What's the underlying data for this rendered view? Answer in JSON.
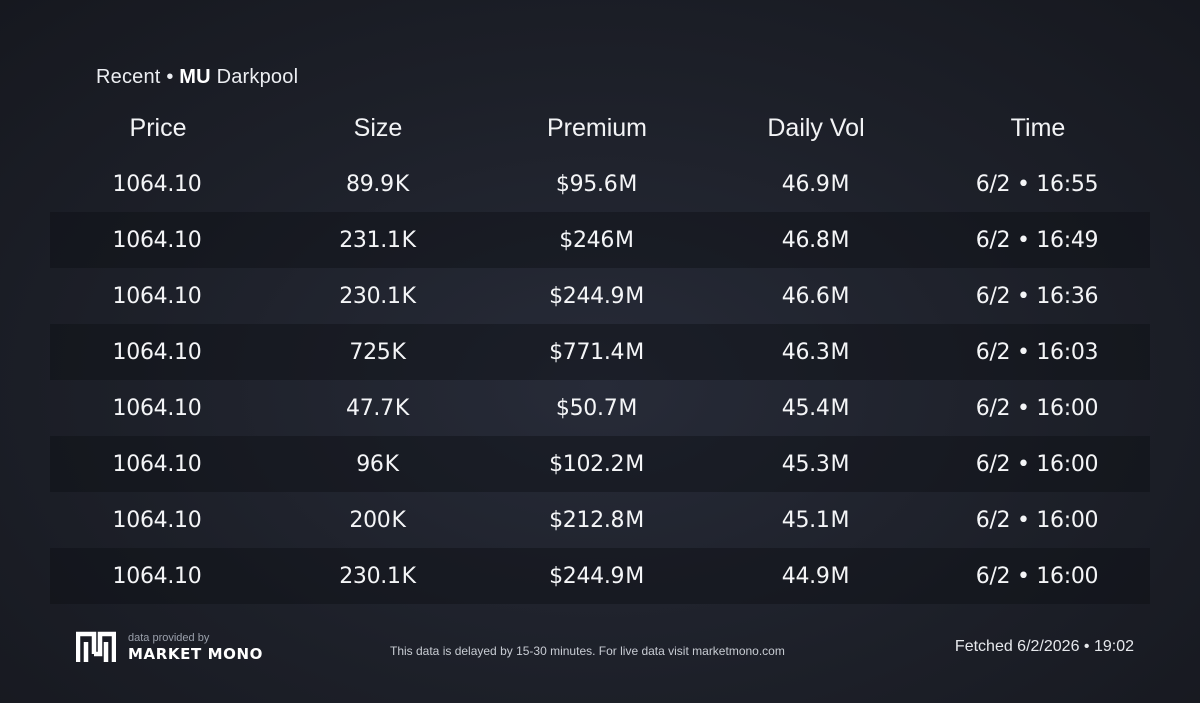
{
  "header": {
    "prefix": "Recent •",
    "ticker": "MU",
    "suffix": "Darkpool"
  },
  "columns": [
    "Price",
    "Size",
    "Premium",
    "Daily Vol",
    "Time"
  ],
  "rows": [
    {
      "price": "1064.10",
      "size": "89.9",
      "size_unit": "K",
      "premium": "$95.6",
      "premium_unit": "M",
      "vol": "46.9",
      "vol_unit": "M",
      "time": "6/2 • 16:55"
    },
    {
      "price": "1064.10",
      "size": "231.1",
      "size_unit": "K",
      "premium": "$246",
      "premium_unit": "M",
      "vol": "46.8",
      "vol_unit": "M",
      "time": "6/2 • 16:49"
    },
    {
      "price": "1064.10",
      "size": "230.1",
      "size_unit": "K",
      "premium": "$244.9",
      "premium_unit": "M",
      "vol": "46.6",
      "vol_unit": "M",
      "time": "6/2 • 16:36"
    },
    {
      "price": "1064.10",
      "size": "725",
      "size_unit": "K",
      "premium": "$771.4",
      "premium_unit": "M",
      "vol": "46.3",
      "vol_unit": "M",
      "time": "6/2 • 16:03"
    },
    {
      "price": "1064.10",
      "size": "47.7",
      "size_unit": "K",
      "premium": "$50.7",
      "premium_unit": "M",
      "vol": "45.4",
      "vol_unit": "M",
      "time": "6/2 • 16:00"
    },
    {
      "price": "1064.10",
      "size": "96",
      "size_unit": "K",
      "premium": "$102.2",
      "premium_unit": "M",
      "vol": "45.3",
      "vol_unit": "M",
      "time": "6/2 • 16:00"
    },
    {
      "price": "1064.10",
      "size": "200",
      "size_unit": "K",
      "premium": "$212.8",
      "premium_unit": "M",
      "vol": "45.1",
      "vol_unit": "M",
      "time": "6/2 • 16:00"
    },
    {
      "price": "1064.10",
      "size": "230.1",
      "size_unit": "K",
      "premium": "$244.9",
      "premium_unit": "M",
      "vol": "44.9",
      "vol_unit": "M",
      "time": "6/2 • 16:00"
    }
  ],
  "footer": {
    "provided_by": "data provided by",
    "brand": "MARKET MONO",
    "logo_icon": "market-mono-logo-icon",
    "delay_notice": "This data is delayed by 15-30 minutes. For live data visit marketmono.com",
    "fetched": "Fetched 6/2/2026 • 19:02"
  },
  "colors": {
    "size_unit": "#3a8ef7",
    "premium_unit": "#f5a50c",
    "vol_unit": "#c77dee",
    "background": "#1d2029"
  }
}
